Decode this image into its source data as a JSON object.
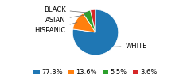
{
  "chart_data": {
    "type": "pie",
    "categories": [
      "WHITE",
      "HISPANIC",
      "ASIAN",
      "BLACK"
    ],
    "values": [
      77.3,
      13.6,
      5.5,
      3.6
    ],
    "value_labels": [
      "77.3%",
      "13.6%",
      "5.5%",
      "3.6%"
    ],
    "legend": "lower center"
  }
}
